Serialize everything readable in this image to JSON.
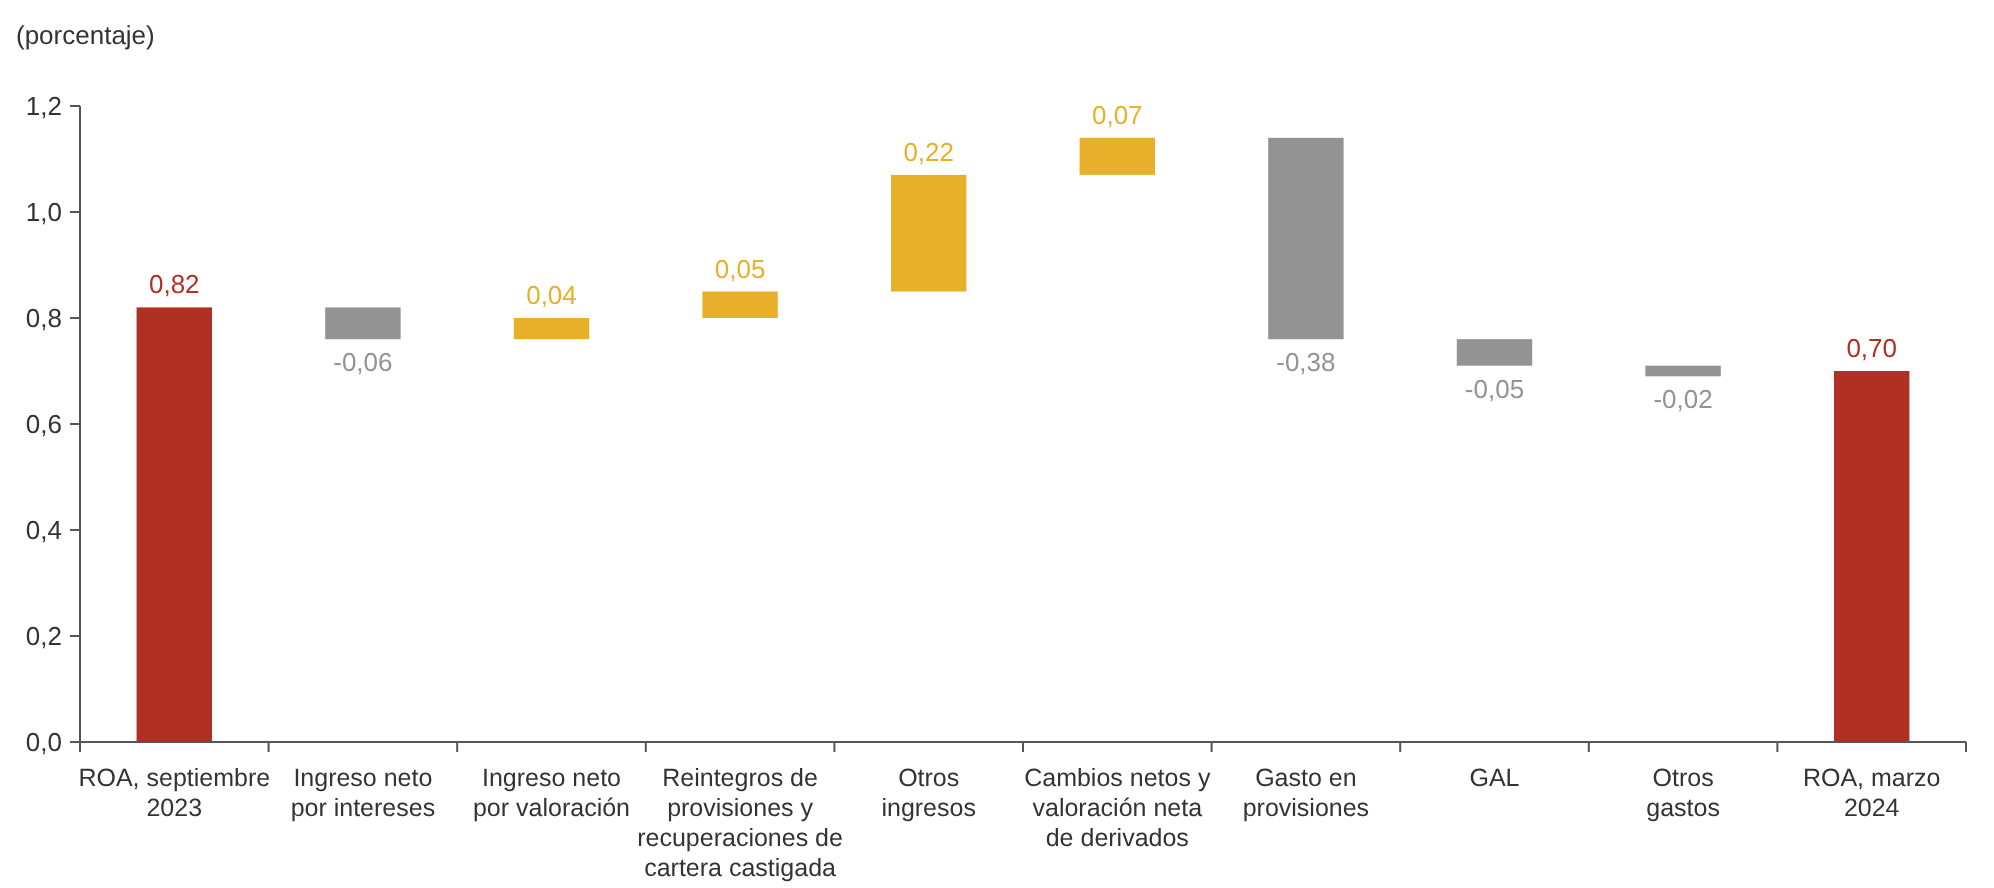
{
  "chart_data": {
    "type": "bar",
    "ylabel": "(porcentaje)",
    "categories": [
      "ROA, septiembre\n2023",
      "Ingreso neto\npor intereses",
      "Ingreso neto\npor valoración",
      "Reintegros de\nprovisiones y\nrecuperaciones de\ncartera castigada",
      "Otros\ningresos",
      "Cambios netos y\nvaloración neta\nde derivados",
      "Gasto en\nprovisiones",
      "GAL",
      "Otros\ngastos",
      "ROA, marzo\n2024"
    ],
    "values": [
      0.82,
      -0.06,
      0.04,
      0.05,
      0.22,
      0.07,
      -0.38,
      -0.05,
      -0.02,
      0.7
    ],
    "base": [
      0,
      0.82,
      0.76,
      0.8,
      0.85,
      1.07,
      1.14,
      0.76,
      0.71,
      0
    ],
    "colors": [
      "#b03024",
      "#939393",
      "#e8b02a",
      "#e8b02a",
      "#e8b02a",
      "#e8b02a",
      "#939393",
      "#939393",
      "#939393",
      "#b03024"
    ],
    "value_labels": [
      "0,82",
      "-0,06",
      "0,04",
      "0,05",
      "0,22",
      "0,07",
      "-0,38",
      "-0,05",
      "-0,02",
      "0,70"
    ],
    "ylim": [
      0,
      1.2
    ],
    "yticks": [
      {
        "value": 0,
        "label": "0,0"
      },
      {
        "value": 0.2,
        "label": "0,2"
      },
      {
        "value": 0.4,
        "label": "0,4"
      },
      {
        "value": 0.6,
        "label": "0,6"
      },
      {
        "value": 0.8,
        "label": "0,8"
      },
      {
        "value": 1.0,
        "label": "1,0"
      },
      {
        "value": 1.2,
        "label": "1,2"
      }
    ],
    "grid": false
  }
}
